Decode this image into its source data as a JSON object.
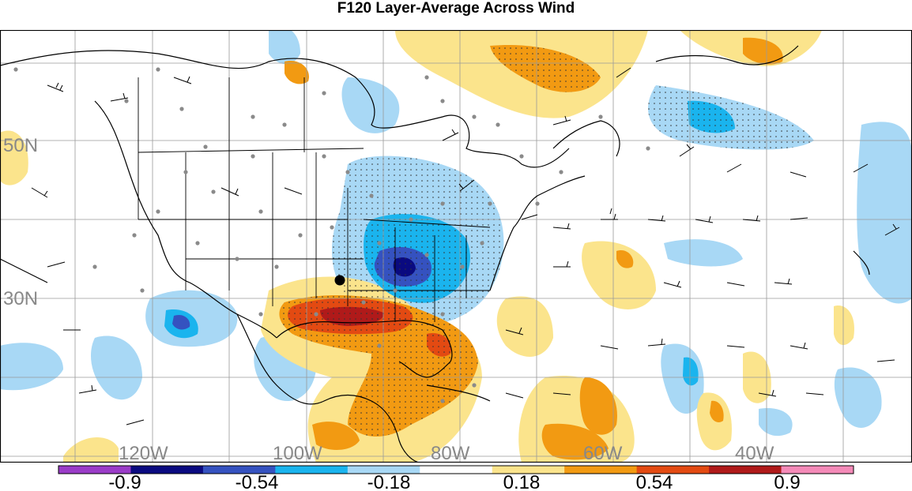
{
  "title": "F120 Layer-Average Across Wind",
  "map": {
    "lat_labels": [
      {
        "text": "50N"
      },
      {
        "text": "30N"
      }
    ],
    "lon_labels": [
      {
        "text": "120W"
      },
      {
        "text": "100W"
      },
      {
        "text": "80W"
      },
      {
        "text": "60W"
      },
      {
        "text": "40W"
      }
    ],
    "colors": {
      "neg_strong_purple": "#9a3cc8",
      "neg_navy": "#0a0a80",
      "neg_blue": "#3552c0",
      "neg_cyan": "#1ab4ee",
      "neg_light": "#a8d8f5",
      "pos_light": "#fbe48c",
      "pos_orange": "#f29a12",
      "pos_redorange": "#e34a12",
      "pos_darkred": "#b01a1a",
      "pos_pink": "#f48ab8",
      "coast": "#000000",
      "grid": "#9a9a9a",
      "station": "#8a8a8a"
    }
  },
  "colorbar": {
    "labels": [
      "-0.9",
      "-0.54",
      "-0.18",
      "0.18",
      "0.54",
      "0.9"
    ],
    "segment_colors": [
      "#9a3cc8",
      "#0a0a80",
      "#3552c0",
      "#1ab4ee",
      "#a8d8f5",
      "#ffffff",
      "#fbe48c",
      "#f29a12",
      "#e34a12",
      "#b01a1a",
      "#f48ab8"
    ]
  }
}
